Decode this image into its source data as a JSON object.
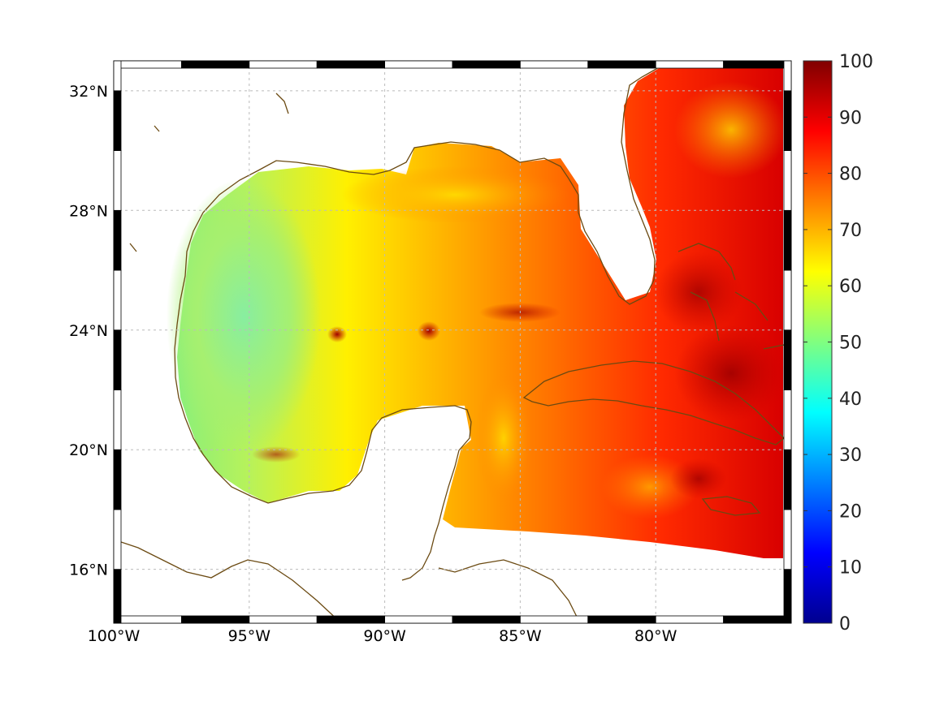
{
  "map": {
    "region": "Gulf of Mexico and Caribbean",
    "projection_box": {
      "lon_min": -100,
      "lon_max": -75,
      "lat_min": 14.2,
      "lat_max": 33
    },
    "lon_ticks": [
      {
        "value": -100,
        "label": "100°W"
      },
      {
        "value": -95,
        "label": "95°W"
      },
      {
        "value": -90,
        "label": "90°W"
      },
      {
        "value": -85,
        "label": "85°W"
      },
      {
        "value": -80,
        "label": "80°W"
      }
    ],
    "lat_ticks": [
      {
        "value": 32,
        "label": "32°N"
      },
      {
        "value": 28,
        "label": "28°N"
      },
      {
        "value": 24,
        "label": "24°N"
      },
      {
        "value": 20,
        "label": "20°N"
      },
      {
        "value": 16,
        "label": "16°N"
      }
    ],
    "grid": true,
    "coastline_color": "#6b4a12",
    "data_field": {
      "min": 40,
      "max": 100,
      "west_gulf_value": 52,
      "central_gulf_value": 70,
      "east_caribbean_value": 88
    }
  },
  "colorbar": {
    "min": 0,
    "max": 100,
    "colormap": "jet",
    "ticks": [
      {
        "value": 100,
        "label": "100"
      },
      {
        "value": 90,
        "label": "90"
      },
      {
        "value": 80,
        "label": "80"
      },
      {
        "value": 70,
        "label": "70"
      },
      {
        "value": 60,
        "label": "60"
      },
      {
        "value": 50,
        "label": "50"
      },
      {
        "value": 40,
        "label": "40"
      },
      {
        "value": 30,
        "label": "30"
      },
      {
        "value": 20,
        "label": "20"
      },
      {
        "value": 10,
        "label": "10"
      },
      {
        "value": 0,
        "label": "0"
      }
    ],
    "stops": [
      "#00008f",
      "#0000ff",
      "#0080ff",
      "#00ffff",
      "#80ff80",
      "#ffff00",
      "#ff8000",
      "#ff0000",
      "#800000"
    ]
  }
}
